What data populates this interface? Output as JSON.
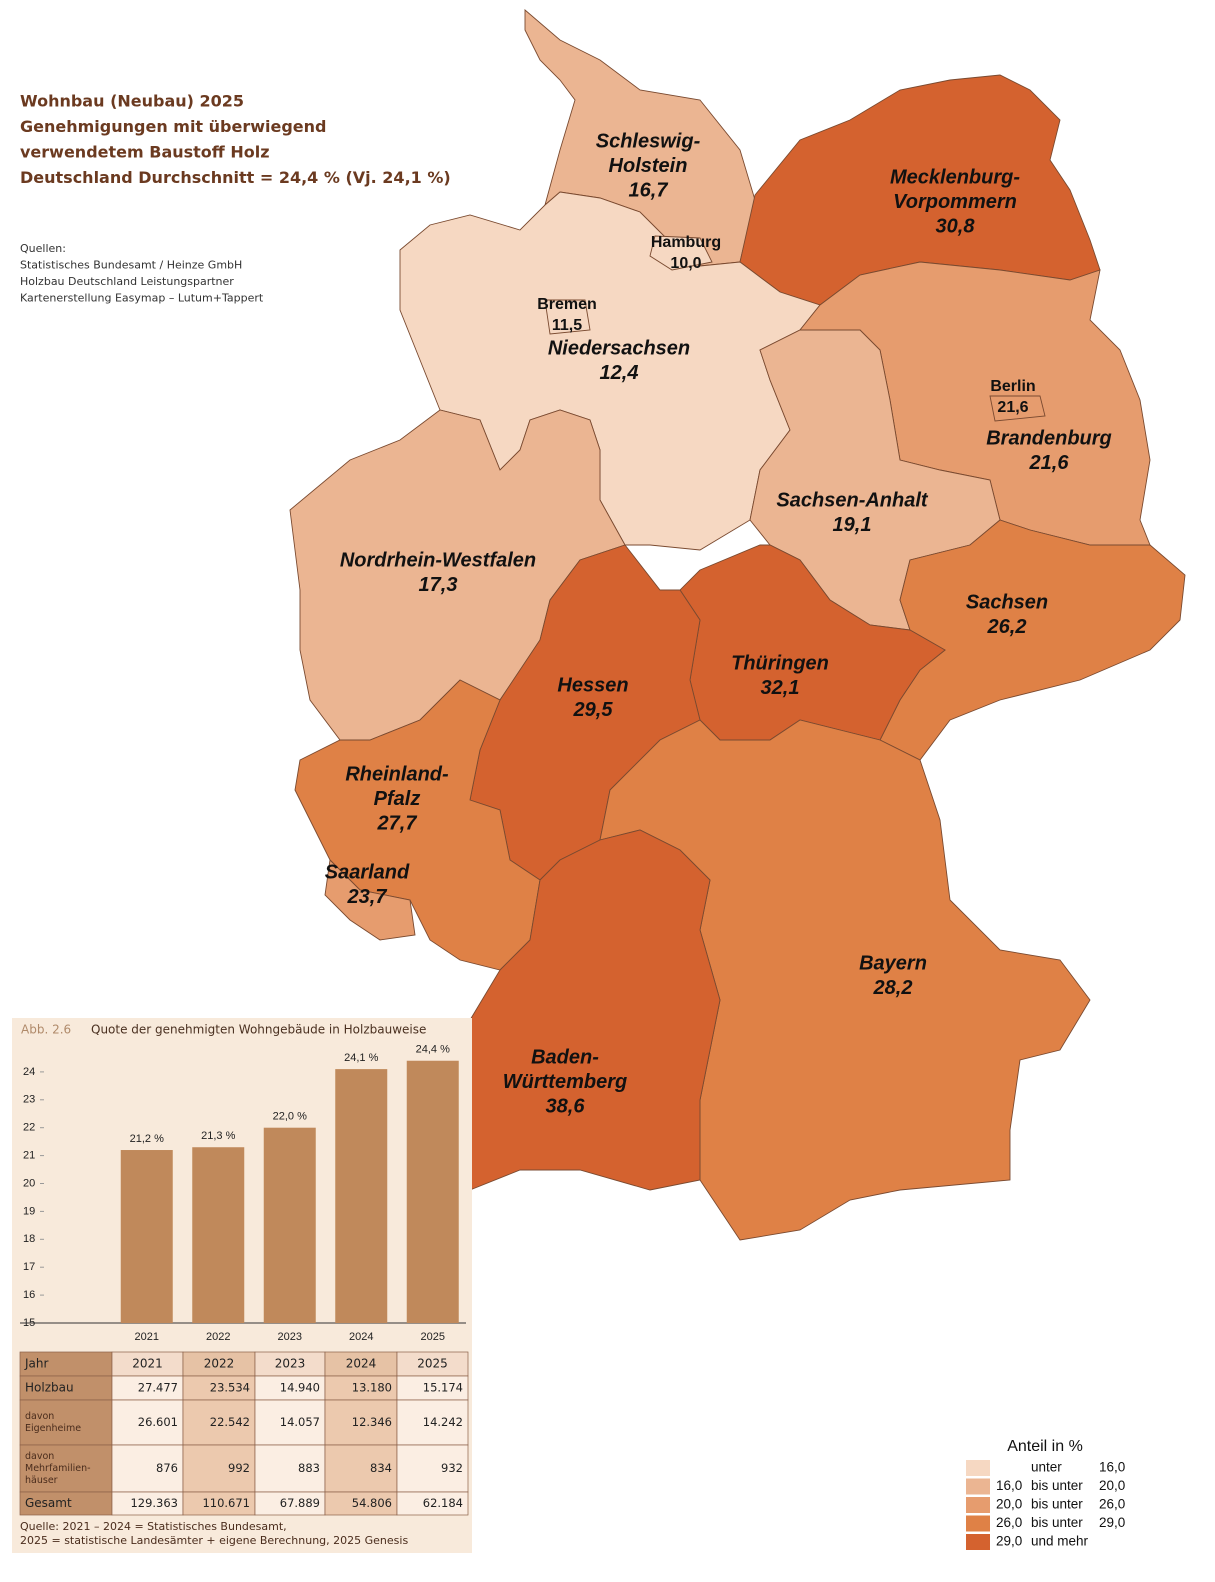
{
  "header": {
    "title_lines": [
      "Wohnbau (Neubau) 2025",
      "Genehmigungen mit überwiegend",
      "verwendetem Baustoff Holz",
      "Deutschland Durchschnitt = 24,4 % (Vj. 24,1 %)"
    ],
    "sources": [
      "Quellen:",
      "Statistisches Bundesamt / Heinze GmbH",
      "Holzbau Deutschland Leistungspartner",
      "Kartenerstellung Easymap – Lutum+Tappert"
    ]
  },
  "map": {
    "regions": [
      {
        "name_lines": [
          "Schleswig-",
          "Holstein"
        ],
        "value": 16.7,
        "value_label": "16,7"
      },
      {
        "name_lines": [
          "Mecklenburg-",
          "Vorpommern"
        ],
        "value": 30.8,
        "value_label": "30,8"
      },
      {
        "name_lines": [
          "Niedersachsen"
        ],
        "value": 12.4,
        "value_label": "12,4"
      },
      {
        "name_lines": [
          "Brandenburg"
        ],
        "value": 21.6,
        "value_label": "21,6"
      },
      {
        "name_lines": [
          "Sachsen-Anhalt"
        ],
        "value": 19.1,
        "value_label": "19,1"
      },
      {
        "name_lines": [
          "Nordrhein-Westfalen"
        ],
        "value": 17.3,
        "value_label": "17,3"
      },
      {
        "name_lines": [
          "Sachsen"
        ],
        "value": 26.2,
        "value_label": "26,2"
      },
      {
        "name_lines": [
          "Thüringen"
        ],
        "value": 32.1,
        "value_label": "32,1"
      },
      {
        "name_lines": [
          "Hessen"
        ],
        "value": 29.5,
        "value_label": "29,5"
      },
      {
        "name_lines": [
          "Rheinland-",
          "Pfalz"
        ],
        "value": 27.7,
        "value_label": "27,7"
      },
      {
        "name_lines": [
          "Saarland"
        ],
        "value": 23.7,
        "value_label": "23,7"
      },
      {
        "name_lines": [
          "Bayern"
        ],
        "value": 28.2,
        "value_label": "28,2"
      },
      {
        "name_lines": [
          "Baden-",
          "Württemberg"
        ],
        "value": 38.6,
        "value_label": "38,6"
      },
      {
        "name_lines": [
          "Hamburg"
        ],
        "value": 10.0,
        "value_label": "10,0"
      },
      {
        "name_lines": [
          "Bremen"
        ],
        "value": 11.5,
        "value_label": "11,5"
      },
      {
        "name_lines": [
          "Berlin"
        ],
        "value": 21.6,
        "value_label": "21,6"
      }
    ],
    "legend": {
      "title": "Anteil in %",
      "classes": [
        {
          "op": "unter",
          "to": {
            "value": 16,
            "label": "16,0"
          },
          "color": "#f6d8c2"
        },
        {
          "from": {
            "value": 16,
            "label": "16,0"
          },
          "op": "bis unter",
          "to": {
            "value": 20,
            "label": "20,0"
          },
          "color": "#ebb592"
        },
        {
          "from": {
            "value": 20,
            "label": "20,0"
          },
          "op": "bis unter",
          "to": {
            "value": 26,
            "label": "26,0"
          },
          "color": "#e69c6e"
        },
        {
          "from": {
            "value": 26,
            "label": "26,0"
          },
          "op": "bis unter",
          "to": {
            "value": 29,
            "label": "29,0"
          },
          "color": "#df8146"
        },
        {
          "from": {
            "value": 29,
            "label": "29,0"
          },
          "op": "und mehr",
          "color": "#d4622f"
        }
      ]
    }
  },
  "chart_data": {
    "type": "bar",
    "label": "Abb. 2.6",
    "title": "Quote der genehmigten Wohngebäude in Holzbauweise",
    "categories": [
      "2021",
      "2022",
      "2023",
      "2024",
      "2025"
    ],
    "values": [
      21.2,
      21.3,
      22.0,
      24.1,
      24.4
    ],
    "value_labels": [
      "21,2 %",
      "21,3 %",
      "22,0 %",
      "24,1 %",
      "24,4 %"
    ],
    "color": "#c0895b",
    "ylim": [
      15,
      25
    ],
    "yticks": [
      15,
      16,
      17,
      18,
      19,
      20,
      21,
      22,
      23,
      24
    ]
  },
  "table": {
    "header": [
      "Jahr",
      "2021",
      "2022",
      "2023",
      "2024",
      "2025"
    ],
    "rows": [
      [
        [
          "Holzbau"
        ],
        "27.477",
        "23.534",
        "14.940",
        "13.180",
        "15.174"
      ],
      [
        [
          "davon",
          "Eigenheime"
        ],
        "26.601",
        "22.542",
        "14.057",
        "12.346",
        "14.242"
      ],
      [
        [
          "davon",
          "Mehrfamilien-",
          "häuser"
        ],
        "876",
        "992",
        "883",
        "834",
        "932"
      ],
      [
        [
          "Gesamt"
        ],
        "129.363",
        "110.671",
        "67.889",
        "54.806",
        "62.184"
      ]
    ]
  },
  "note": [
    "Quelle: 2021 – 2024 = Statistisches Bundesamt,",
    "2025 = statistische Landesämter + eigene Berechnung, 2025 Genesis"
  ]
}
